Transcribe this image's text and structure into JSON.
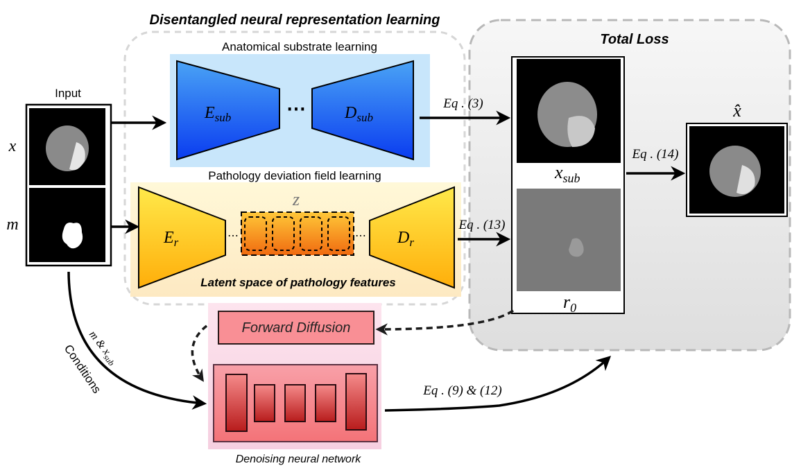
{
  "title": "Disentangled neural representation learning",
  "total_loss": "Total Loss",
  "input": {
    "label": "Input",
    "x_label": "x",
    "m_label": "m"
  },
  "anatomical": {
    "label": "Anatomical substrate learning",
    "encoder": "E",
    "encoder_sub": "sub",
    "decoder": "D",
    "decoder_sub": "sub",
    "dots": "⋯"
  },
  "pathology": {
    "label": "Pathology deviation field learning",
    "encoder": "E",
    "encoder_sub": "r",
    "decoder": "D",
    "decoder_sub": "r",
    "latent": "z",
    "latent_caption": "Latent space of pathology features",
    "dots": "⋯"
  },
  "equations": {
    "eq3": "Eq . (3)",
    "eq13": "Eq . (13)",
    "eq14": "Eq . (14)",
    "eq9_12": "Eq . (9) & (12)"
  },
  "outputs": {
    "x_sub": "x",
    "x_sub_sub": "sub",
    "r0": "r",
    "r0_sub": "0",
    "x_hat": "x̂"
  },
  "diffusion": {
    "forward": "Forward Diffusion",
    "denoise_caption": "Denoising neural network",
    "conditions": "Conditions",
    "cond_vars": "m & x",
    "cond_vars_sub": "sub"
  }
}
